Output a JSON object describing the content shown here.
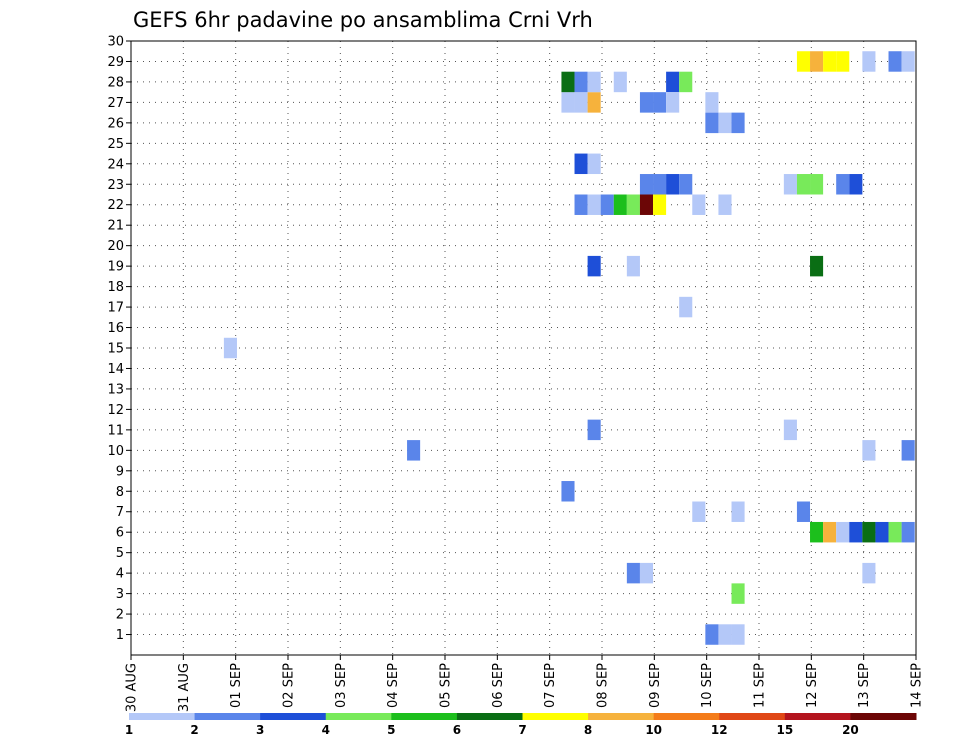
{
  "chart_data": {
    "type": "heatmap",
    "title": "GEFS 6hr padavine po ansamblima Crni Vrh",
    "xlabel": "",
    "ylabel": "",
    "x_tick_labels": [
      "30 AUG",
      "31 AUG",
      "01 SEP",
      "02 SEP",
      "03 SEP",
      "04 SEP",
      "05 SEP",
      "06 SEP",
      "07 SEP",
      "08 SEP",
      "09 SEP",
      "10 SEP",
      "11 SEP",
      "12 SEP",
      "13 SEP",
      "14 SEP"
    ],
    "y_tick_labels": [
      "1",
      "2",
      "3",
      "4",
      "5",
      "6",
      "7",
      "8",
      "9",
      "10",
      "11",
      "12",
      "13",
      "14",
      "15",
      "16",
      "17",
      "18",
      "19",
      "20",
      "21",
      "22",
      "23",
      "24",
      "25",
      "26",
      "27",
      "28",
      "29",
      "30"
    ],
    "xlim_days": [
      0,
      15
    ],
    "ylim": [
      0,
      30
    ],
    "grid": true,
    "colorbar": {
      "labels": [
        "1",
        "2",
        "3",
        "4",
        "5",
        "6",
        "7",
        "8",
        "10",
        "12",
        "15",
        "20"
      ],
      "colors": [
        "#b4c8f8",
        "#5a85ea",
        "#1e4fd8",
        "#78ea5a",
        "#1cbf1c",
        "#0a6e14",
        "#ffff00",
        "#f6b23c",
        "#f47c1a",
        "#e04816",
        "#b4141e",
        "#6c0606"
      ]
    },
    "cells": [
      {
        "day": 1.9,
        "member": 15,
        "level": 1
      },
      {
        "day": 5.4,
        "member": 10,
        "level": 2
      },
      {
        "day": 8.35,
        "member": 27,
        "level": 1
      },
      {
        "day": 8.35,
        "member": 28,
        "level": 6
      },
      {
        "day": 8.35,
        "member": 8,
        "level": 2
      },
      {
        "day": 8.6,
        "member": 27,
        "level": 1
      },
      {
        "day": 8.6,
        "member": 28,
        "level": 2
      },
      {
        "day": 8.6,
        "member": 24,
        "level": 3
      },
      {
        "day": 8.6,
        "member": 22,
        "level": 2
      },
      {
        "day": 8.85,
        "member": 27,
        "level": 8
      },
      {
        "day": 8.85,
        "member": 28,
        "level": 1
      },
      {
        "day": 8.85,
        "member": 24,
        "level": 1
      },
      {
        "day": 8.85,
        "member": 22,
        "level": 1
      },
      {
        "day": 8.85,
        "member": 19,
        "level": 3
      },
      {
        "day": 8.85,
        "member": 11,
        "level": 2
      },
      {
        "day": 9.1,
        "member": 22,
        "level": 2
      },
      {
        "day": 9.35,
        "member": 28,
        "level": 1
      },
      {
        "day": 9.35,
        "member": 22,
        "level": 5
      },
      {
        "day": 9.6,
        "member": 22,
        "level": 4
      },
      {
        "day": 9.6,
        "member": 19,
        "level": 1
      },
      {
        "day": 9.6,
        "member": 4,
        "level": 2
      },
      {
        "day": 9.85,
        "member": 27,
        "level": 2
      },
      {
        "day": 9.85,
        "member": 23,
        "level": 2
      },
      {
        "day": 9.85,
        "member": 22,
        "level": 12
      },
      {
        "day": 9.85,
        "member": 4,
        "level": 1
      },
      {
        "day": 10.1,
        "member": 27,
        "level": 2
      },
      {
        "day": 10.1,
        "member": 23,
        "level": 2
      },
      {
        "day": 10.1,
        "member": 22,
        "level": 7
      },
      {
        "day": 10.35,
        "member": 28,
        "level": 3
      },
      {
        "day": 10.35,
        "member": 27,
        "level": 1
      },
      {
        "day": 10.35,
        "member": 23,
        "level": 3
      },
      {
        "day": 10.6,
        "member": 28,
        "level": 4
      },
      {
        "day": 10.6,
        "member": 23,
        "level": 2
      },
      {
        "day": 10.6,
        "member": 17,
        "level": 1
      },
      {
        "day": 10.85,
        "member": 22,
        "level": 1
      },
      {
        "day": 10.85,
        "member": 7,
        "level": 1
      },
      {
        "day": 11.1,
        "member": 27,
        "level": 1
      },
      {
        "day": 11.1,
        "member": 26,
        "level": 2
      },
      {
        "day": 11.1,
        "member": 1,
        "level": 2
      },
      {
        "day": 11.35,
        "member": 26,
        "level": 1
      },
      {
        "day": 11.35,
        "member": 22,
        "level": 1
      },
      {
        "day": 11.35,
        "member": 1,
        "level": 1
      },
      {
        "day": 11.6,
        "member": 26,
        "level": 2
      },
      {
        "day": 11.6,
        "member": 7,
        "level": 1
      },
      {
        "day": 11.6,
        "member": 3,
        "level": 4
      },
      {
        "day": 11.6,
        "member": 1,
        "level": 1
      },
      {
        "day": 12.6,
        "member": 23,
        "level": 1
      },
      {
        "day": 12.6,
        "member": 11,
        "level": 1
      },
      {
        "day": 12.85,
        "member": 29,
        "level": 7
      },
      {
        "day": 12.85,
        "member": 23,
        "level": 4
      },
      {
        "day": 12.85,
        "member": 7,
        "level": 2
      },
      {
        "day": 13.1,
        "member": 29,
        "level": 8
      },
      {
        "day": 13.1,
        "member": 23,
        "level": 4
      },
      {
        "day": 13.1,
        "member": 19,
        "level": 6
      },
      {
        "day": 13.1,
        "member": 6,
        "level": 5
      },
      {
        "day": 13.35,
        "member": 29,
        "level": 7
      },
      {
        "day": 13.35,
        "member": 6,
        "level": 8
      },
      {
        "day": 13.6,
        "member": 29,
        "level": 7
      },
      {
        "day": 13.6,
        "member": 23,
        "level": 2
      },
      {
        "day": 13.6,
        "member": 6,
        "level": 1
      },
      {
        "day": 13.85,
        "member": 23,
        "level": 3
      },
      {
        "day": 13.85,
        "member": 6,
        "level": 3
      },
      {
        "day": 14.1,
        "member": 29,
        "level": 1
      },
      {
        "day": 14.1,
        "member": 10,
        "level": 1
      },
      {
        "day": 14.1,
        "member": 6,
        "level": 6
      },
      {
        "day": 14.1,
        "member": 4,
        "level": 1
      },
      {
        "day": 14.35,
        "member": 6,
        "level": 3
      },
      {
        "day": 14.6,
        "member": 29,
        "level": 2
      },
      {
        "day": 14.6,
        "member": 6,
        "level": 4
      },
      {
        "day": 14.85,
        "member": 29,
        "level": 1
      },
      {
        "day": 14.85,
        "member": 10,
        "level": 2
      },
      {
        "day": 14.85,
        "member": 6,
        "level": 2
      }
    ]
  }
}
